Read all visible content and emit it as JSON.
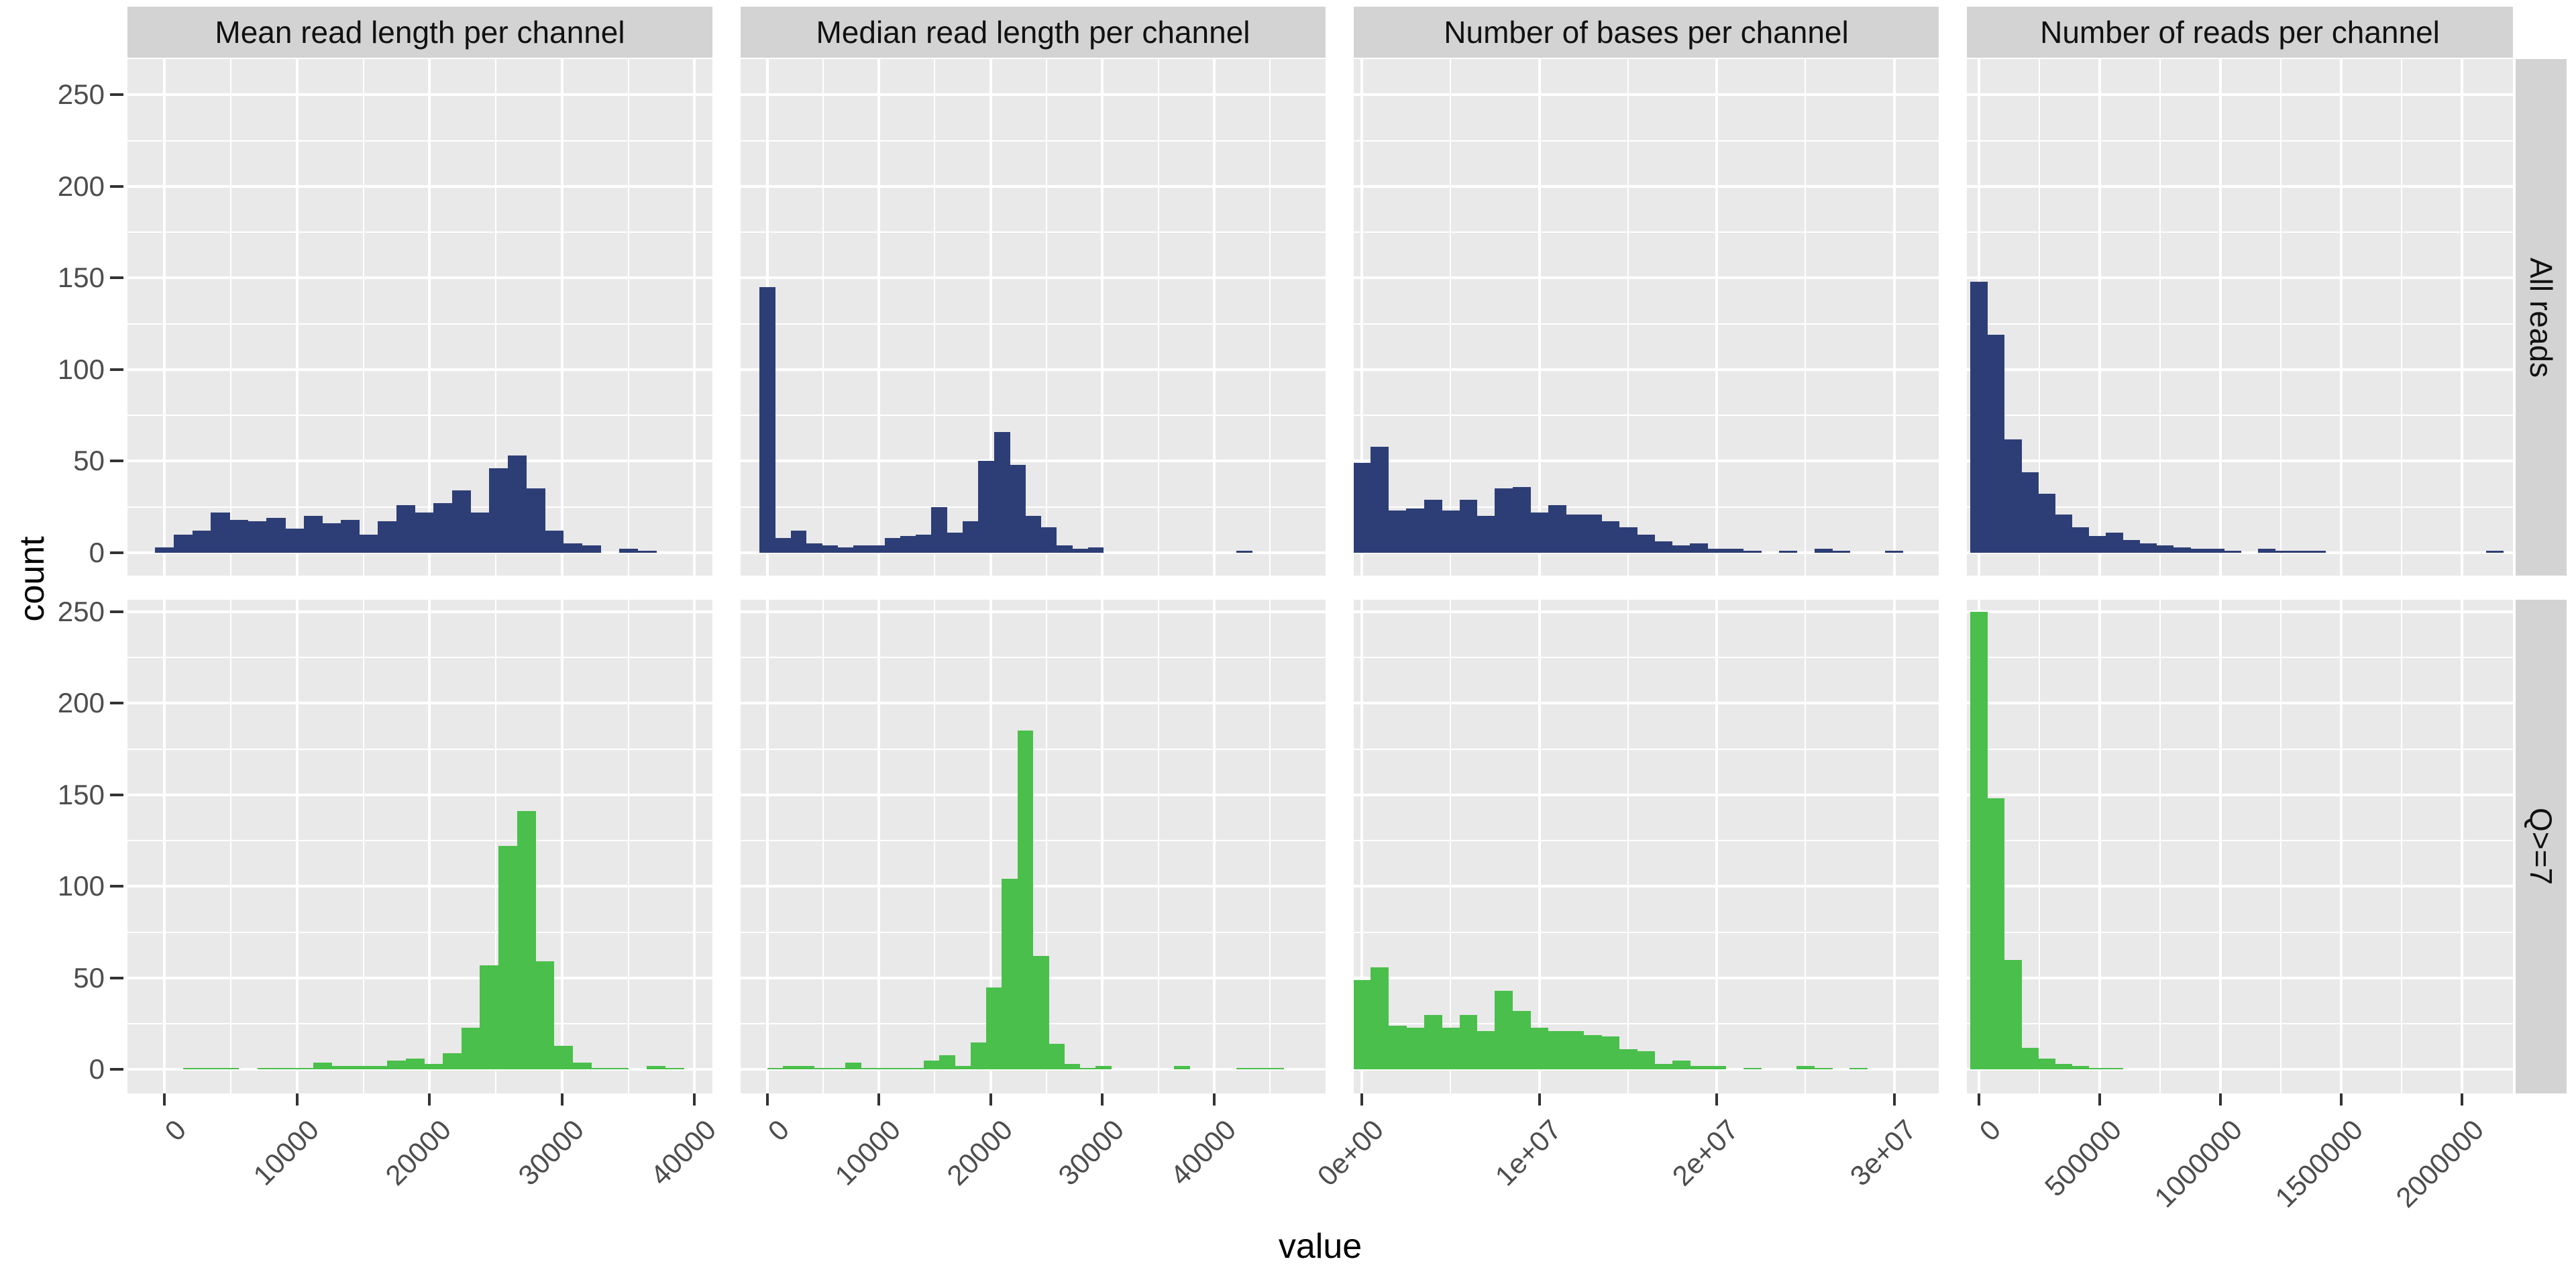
{
  "chart_data": {
    "type": "bar",
    "subtype": "faceted-histogram-grid",
    "xlabel": "value",
    "ylabel": "count",
    "grid": "on",
    "legend": "none",
    "y_axis": {
      "ticks": [
        0,
        50,
        100,
        150,
        200,
        250
      ],
      "minor_step": 25
    },
    "colors": {
      "all_reads_bar": "#2d3e76",
      "q7_bar": "#4abf4b",
      "panel_background": "#e9e9e9",
      "strip_background": "#d3d3d3",
      "gridline": "#ffffff",
      "axis_text": "#4d4d4d",
      "axis_title": "#000000",
      "tick_mark": "#333333"
    },
    "rows": [
      {
        "name": "All reads",
        "color": "#2d3e76",
        "ylim": [
          -12.5,
          269.5
        ]
      },
      {
        "name": "Q>=7",
        "color": "#4abf4b",
        "ylim": [
          -13.0,
          256.5
        ]
      }
    ],
    "columns": [
      {
        "label": "Mean read length per channel",
        "xlim": [
          -2800,
          41350
        ],
        "ticks": [
          {
            "v": 0,
            "t": "0"
          },
          {
            "v": 10000,
            "t": "10000"
          },
          {
            "v": 20000,
            "t": "20000"
          },
          {
            "v": 30000,
            "t": "30000"
          },
          {
            "v": 40000,
            "t": "40000"
          }
        ],
        "major_step": 10000,
        "binwidth": 1400
      },
      {
        "label": "Median read length per channel",
        "xlim": [
          -2380,
          49980
        ],
        "ticks": [
          {
            "v": 0,
            "t": "0"
          },
          {
            "v": 10000,
            "t": "10000"
          },
          {
            "v": 20000,
            "t": "20000"
          },
          {
            "v": 30000,
            "t": "30000"
          },
          {
            "v": 40000,
            "t": "40000"
          }
        ],
        "major_step": 10000,
        "binwidth": 1400
      },
      {
        "label": "Number of bases per channel",
        "xlim": [
          -455000,
          32510000
        ],
        "ticks": [
          {
            "v": 0,
            "t": "0e+00"
          },
          {
            "v": 10000000,
            "t": "1e+07"
          },
          {
            "v": 20000000,
            "t": "2e+07"
          },
          {
            "v": 30000000,
            "t": "3e+07"
          }
        ],
        "major_step": 10000000,
        "binwidth": 1000000
      },
      {
        "label": "Number of reads per channel",
        "xlim": [
          -50000,
          2210000
        ],
        "ticks": [
          {
            "v": 0,
            "t": "0"
          },
          {
            "v": 500000,
            "t": "500000"
          },
          {
            "v": 1000000,
            "t": "1000000"
          },
          {
            "v": 1500000,
            "t": "1500000"
          },
          {
            "v": 2000000,
            "t": "2000000"
          }
        ],
        "major_step": 500000,
        "binwidth": 70000
      }
    ],
    "panels": [
      {
        "row": 0,
        "col": 0,
        "bins": [
          [
            -700,
            3
          ],
          [
            700,
            10
          ],
          [
            2100,
            12
          ],
          [
            3500,
            22
          ],
          [
            4900,
            18
          ],
          [
            6300,
            17
          ],
          [
            7700,
            19
          ],
          [
            9100,
            13
          ],
          [
            10500,
            20
          ],
          [
            11900,
            16
          ],
          [
            13300,
            18
          ],
          [
            14700,
            10
          ],
          [
            16100,
            17
          ],
          [
            17500,
            26
          ],
          [
            18900,
            22
          ],
          [
            20300,
            27
          ],
          [
            21700,
            34
          ],
          [
            23100,
            22
          ],
          [
            24500,
            46
          ],
          [
            25900,
            53
          ],
          [
            27300,
            35
          ],
          [
            28700,
            12
          ],
          [
            30100,
            5
          ],
          [
            31500,
            4
          ],
          [
            34300,
            2
          ],
          [
            35700,
            1
          ]
        ]
      },
      {
        "row": 0,
        "col": 1,
        "bins": [
          [
            -700,
            145
          ],
          [
            700,
            8
          ],
          [
            2100,
            12
          ],
          [
            3500,
            5
          ],
          [
            4900,
            4
          ],
          [
            6300,
            3
          ],
          [
            7700,
            4
          ],
          [
            9100,
            4
          ],
          [
            10500,
            8
          ],
          [
            11900,
            9
          ],
          [
            13300,
            10
          ],
          [
            14700,
            25
          ],
          [
            16100,
            11
          ],
          [
            17500,
            17
          ],
          [
            18900,
            50
          ],
          [
            20300,
            66
          ],
          [
            21700,
            48
          ],
          [
            23100,
            20
          ],
          [
            24500,
            14
          ],
          [
            25900,
            4
          ],
          [
            27300,
            2
          ],
          [
            28700,
            3
          ],
          [
            42000,
            1
          ]
        ]
      },
      {
        "row": 0,
        "col": 2,
        "bins": [
          [
            -500000,
            49
          ],
          [
            500000,
            58
          ],
          [
            1500000,
            23
          ],
          [
            2500000,
            24
          ],
          [
            3500000,
            29
          ],
          [
            4500000,
            23
          ],
          [
            5500000,
            29
          ],
          [
            6500000,
            20
          ],
          [
            7500000,
            35
          ],
          [
            8500000,
            36
          ],
          [
            9500000,
            22
          ],
          [
            10500000,
            26
          ],
          [
            11500000,
            21
          ],
          [
            12500000,
            21
          ],
          [
            13500000,
            17
          ],
          [
            14500000,
            14
          ],
          [
            15500000,
            10
          ],
          [
            16500000,
            6
          ],
          [
            17500000,
            4
          ],
          [
            18500000,
            5
          ],
          [
            19500000,
            2
          ],
          [
            20500000,
            2
          ],
          [
            21500000,
            1
          ],
          [
            23500000,
            1
          ],
          [
            25500000,
            2
          ],
          [
            26500000,
            1
          ],
          [
            29500000,
            1
          ]
        ]
      },
      {
        "row": 0,
        "col": 3,
        "bins": [
          [
            -35000,
            148
          ],
          [
            35000,
            119
          ],
          [
            105000,
            62
          ],
          [
            175000,
            44
          ],
          [
            245000,
            32
          ],
          [
            315000,
            21
          ],
          [
            385000,
            14
          ],
          [
            455000,
            9
          ],
          [
            525000,
            11
          ],
          [
            595000,
            7
          ],
          [
            665000,
            5
          ],
          [
            735000,
            4
          ],
          [
            805000,
            3
          ],
          [
            875000,
            2
          ],
          [
            945000,
            2
          ],
          [
            1015000,
            1
          ],
          [
            1155000,
            2
          ],
          [
            1225000,
            1
          ],
          [
            1295000,
            1
          ],
          [
            1365000,
            1
          ],
          [
            2100000,
            1
          ]
        ]
      },
      {
        "row": 1,
        "col": 0,
        "bins": [
          [
            1400,
            1
          ],
          [
            2800,
            1
          ],
          [
            4200,
            1
          ],
          [
            7000,
            1
          ],
          [
            8400,
            1
          ],
          [
            9800,
            1
          ],
          [
            11200,
            4
          ],
          [
            12600,
            2
          ],
          [
            14000,
            2
          ],
          [
            15400,
            2
          ],
          [
            16800,
            5
          ],
          [
            18200,
            6
          ],
          [
            19600,
            3
          ],
          [
            21000,
            9
          ],
          [
            22400,
            23
          ],
          [
            23800,
            57
          ],
          [
            25200,
            122
          ],
          [
            26600,
            141
          ],
          [
            28000,
            59
          ],
          [
            29400,
            13
          ],
          [
            30800,
            4
          ],
          [
            32200,
            1
          ],
          [
            33600,
            1
          ],
          [
            36400,
            2
          ],
          [
            37800,
            1
          ]
        ]
      },
      {
        "row": 1,
        "col": 1,
        "bins": [
          [
            0,
            1
          ],
          [
            1400,
            2
          ],
          [
            2800,
            2
          ],
          [
            4200,
            1
          ],
          [
            5600,
            1
          ],
          [
            7000,
            4
          ],
          [
            8400,
            1
          ],
          [
            9800,
            1
          ],
          [
            11200,
            1
          ],
          [
            12600,
            1
          ],
          [
            14000,
            5
          ],
          [
            15400,
            8
          ],
          [
            16800,
            2
          ],
          [
            18200,
            15
          ],
          [
            19600,
            45
          ],
          [
            21000,
            104
          ],
          [
            22400,
            185
          ],
          [
            23800,
            62
          ],
          [
            25200,
            14
          ],
          [
            26600,
            3
          ],
          [
            28000,
            1
          ],
          [
            29400,
            2
          ],
          [
            36400,
            2
          ],
          [
            42000,
            1
          ],
          [
            43400,
            1
          ],
          [
            44800,
            1
          ]
        ]
      },
      {
        "row": 1,
        "col": 2,
        "bins": [
          [
            -500000,
            49
          ],
          [
            500000,
            56
          ],
          [
            1500000,
            24
          ],
          [
            2500000,
            23
          ],
          [
            3500000,
            30
          ],
          [
            4500000,
            23
          ],
          [
            5500000,
            30
          ],
          [
            6500000,
            21
          ],
          [
            7500000,
            43
          ],
          [
            8500000,
            32
          ],
          [
            9500000,
            23
          ],
          [
            10500000,
            21
          ],
          [
            11500000,
            21
          ],
          [
            12500000,
            19
          ],
          [
            13500000,
            18
          ],
          [
            14500000,
            11
          ],
          [
            15500000,
            10
          ],
          [
            16500000,
            3
          ],
          [
            17500000,
            5
          ],
          [
            18500000,
            2
          ],
          [
            19500000,
            2
          ],
          [
            21500000,
            1
          ],
          [
            24500000,
            2
          ],
          [
            25500000,
            1
          ],
          [
            27500000,
            1
          ]
        ]
      },
      {
        "row": 1,
        "col": 3,
        "bins": [
          [
            -35000,
            250
          ],
          [
            35000,
            148
          ],
          [
            105000,
            60
          ],
          [
            175000,
            12
          ],
          [
            245000,
            6
          ],
          [
            315000,
            3
          ],
          [
            385000,
            2
          ],
          [
            455000,
            1
          ],
          [
            525000,
            1
          ]
        ]
      }
    ]
  }
}
